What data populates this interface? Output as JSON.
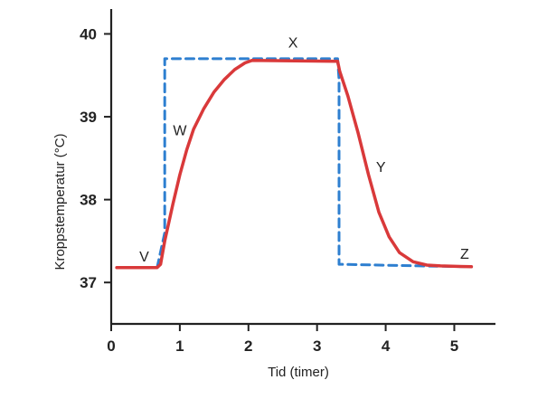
{
  "chart_data": {
    "type": "line",
    "xlabel": "Tid (timer)",
    "ylabel": "Kroppstemperatur (°C)",
    "xlim": [
      0,
      5.6
    ],
    "ylim": [
      36.5,
      40.3
    ],
    "x_ticks": [
      0,
      1,
      2,
      3,
      4,
      5
    ],
    "y_ticks": [
      37,
      38,
      39,
      40
    ],
    "grid": false,
    "series": [
      {
        "style": "solid",
        "color": "#d9393a",
        "points": [
          [
            0.08,
            37.18
          ],
          [
            0.67,
            37.18
          ],
          [
            0.72,
            37.22
          ],
          [
            0.78,
            37.5
          ],
          [
            0.9,
            37.95
          ],
          [
            1.0,
            38.3
          ],
          [
            1.1,
            38.6
          ],
          [
            1.2,
            38.85
          ],
          [
            1.35,
            39.1
          ],
          [
            1.5,
            39.3
          ],
          [
            1.65,
            39.45
          ],
          [
            1.8,
            39.57
          ],
          [
            1.95,
            39.65
          ],
          [
            2.05,
            39.68
          ],
          [
            3.3,
            39.67
          ],
          [
            3.33,
            39.55
          ],
          [
            3.45,
            39.25
          ],
          [
            3.6,
            38.8
          ],
          [
            3.75,
            38.3
          ],
          [
            3.9,
            37.85
          ],
          [
            4.05,
            37.55
          ],
          [
            4.2,
            37.36
          ],
          [
            4.4,
            37.25
          ],
          [
            4.6,
            37.21
          ],
          [
            4.8,
            37.2
          ],
          [
            5.25,
            37.19
          ]
        ]
      },
      {
        "style": "dashed",
        "color": "#2e7fd0",
        "points": [
          [
            0.67,
            37.18
          ],
          [
            0.78,
            37.6
          ],
          [
            0.78,
            39.7
          ],
          [
            2.0,
            39.7
          ],
          [
            3.3,
            39.7
          ],
          [
            3.32,
            39.45
          ],
          [
            3.32,
            37.22
          ],
          [
            4.5,
            37.2
          ],
          [
            5.25,
            37.19
          ]
        ]
      }
    ],
    "annotations": [
      {
        "text": "V",
        "x": 0.48,
        "y": 37.32
      },
      {
        "text": "W",
        "x": 1.0,
        "y": 38.84
      },
      {
        "text": "X",
        "x": 2.65,
        "y": 39.9
      },
      {
        "text": "Y",
        "x": 3.93,
        "y": 38.4
      },
      {
        "text": "Z",
        "x": 5.15,
        "y": 37.35
      }
    ]
  }
}
